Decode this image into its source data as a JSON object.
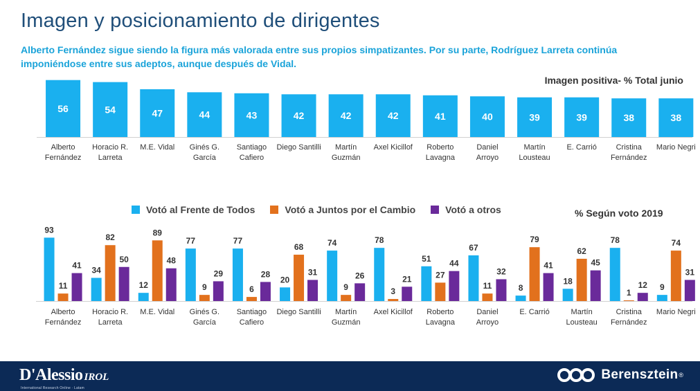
{
  "page": {
    "title": "Imagen y posicionamiento de dirigentes",
    "subtitle": "Alberto Fernández sigue siendo la figura más valorada entre sus propios simpatizantes. Por su parte, Rodríguez Larreta continúa imponiéndose entre sus adeptos, aunque después de Vidal."
  },
  "colors": {
    "title": "#1f4e79",
    "subtitle": "#1aa3d9",
    "bar_top": "#1ab0ef",
    "frente_de_todos": "#1ab0ef",
    "juntos_por_el_cambio": "#e2711d",
    "otros": "#6a2a9a",
    "footer": "#0c2a56"
  },
  "footer": {
    "left_brand": "D'Alessio",
    "left_brand_suffix": "IROL",
    "left_tagline": "International Research Online · Latam",
    "right_brand": "Berensztein",
    "right_mark": "®",
    "right_icon": "berensztein-logo-icon"
  },
  "chart_data": [
    {
      "type": "bar",
      "title": "Imagen positiva- % Total junio",
      "categories": [
        [
          "Alberto",
          "Fernández"
        ],
        [
          "Horacio R.",
          "Larreta"
        ],
        [
          "M.E. Vidal"
        ],
        [
          "Ginés G.",
          "García"
        ],
        [
          "Santiago",
          "Cafiero"
        ],
        [
          "Diego Santilli"
        ],
        [
          "Martín",
          "Guzmán"
        ],
        [
          "Axel Kicillof"
        ],
        [
          "Roberto",
          "Lavagna"
        ],
        [
          "Daniel",
          "Arroyo"
        ],
        [
          "Martín",
          "Lousteau"
        ],
        [
          "E. Carrió"
        ],
        [
          "Cristina",
          "Fernández"
        ],
        [
          "Mario Negri"
        ]
      ],
      "values": [
        56,
        54,
        47,
        44,
        43,
        42,
        42,
        42,
        41,
        40,
        39,
        39,
        38,
        38
      ],
      "data_labels": true,
      "grid": false
    },
    {
      "type": "bar",
      "title": "% Según voto 2019",
      "legend_position": "top",
      "categories": [
        [
          "Alberto",
          "Fernández"
        ],
        [
          "Horacio R.",
          "Larreta"
        ],
        [
          "M.E. Vidal"
        ],
        [
          "Ginés G.",
          "García"
        ],
        [
          "Santiago",
          "Cafiero"
        ],
        [
          "Diego Santilli"
        ],
        [
          "Martín",
          "Guzmán"
        ],
        [
          "Axel Kicillof"
        ],
        [
          "Roberto",
          "Lavagna"
        ],
        [
          "Daniel",
          "Arroyo"
        ],
        [
          "E. Carrió"
        ],
        [
          "Martín",
          "Lousteau"
        ],
        [
          "Cristina",
          "Fernández"
        ],
        [
          "Mario Negri"
        ]
      ],
      "series": [
        {
          "name": "Votó al Frente de Todos",
          "color_key": "frente_de_todos",
          "values": [
            93,
            34,
            12,
            77,
            77,
            20,
            74,
            78,
            51,
            67,
            8,
            18,
            78,
            9
          ]
        },
        {
          "name": "Votó a Juntos por el Cambio",
          "color_key": "juntos_por_el_cambio",
          "values": [
            11,
            82,
            89,
            9,
            6,
            68,
            9,
            3,
            27,
            11,
            79,
            62,
            1,
            74
          ]
        },
        {
          "name": "Votó a otros",
          "color_key": "otros",
          "values": [
            41,
            50,
            48,
            29,
            28,
            31,
            26,
            21,
            44,
            32,
            41,
            45,
            12,
            31
          ]
        }
      ],
      "data_labels": true,
      "grid": false
    }
  ]
}
